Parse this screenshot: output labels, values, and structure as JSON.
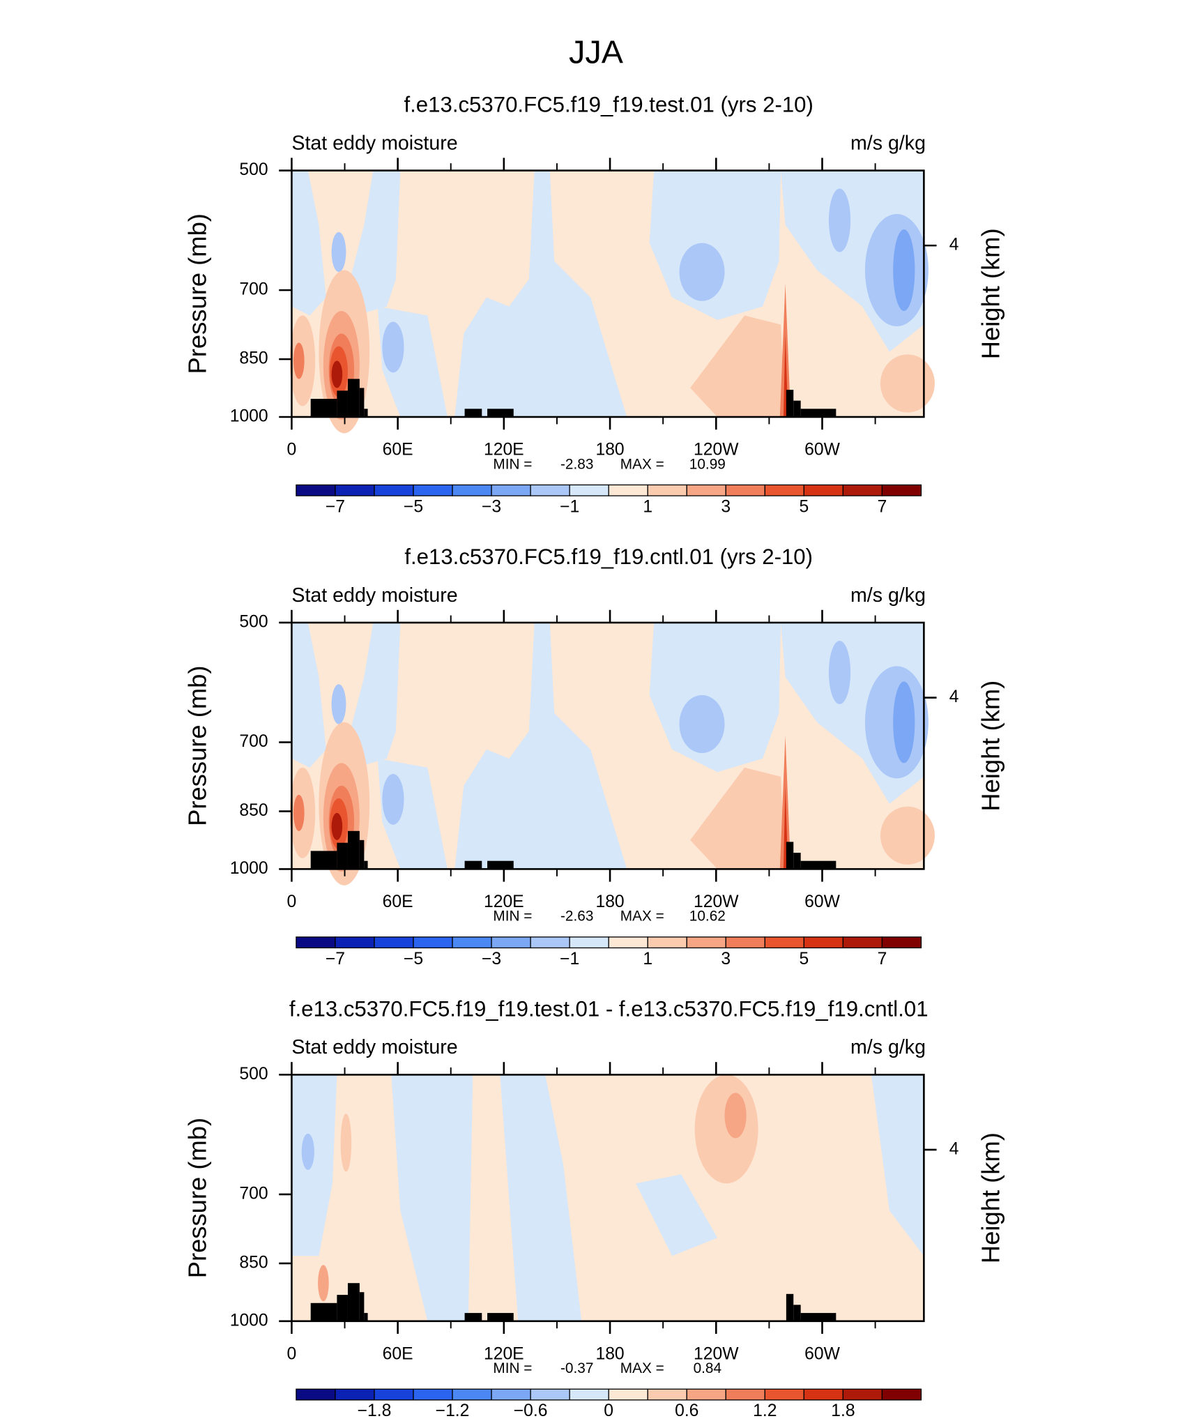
{
  "title": "JJA",
  "chart_data": [
    {
      "type": "contour",
      "title": "f.e13.c5370.FC5.f19_f19.test.01 (yrs 2-10)",
      "left_label": "Stat eddy moisture",
      "right_label": "m/s g/kg",
      "xlim": [
        0,
        357.5
      ],
      "xticks": [
        0,
        {
          "value": 60,
          "label": "60E"
        },
        {
          "value": 120,
          "label": "120E"
        },
        180,
        {
          "value": 240,
          "label": "120W"
        },
        {
          "value": 300,
          "label": "60W"
        }
      ],
      "xminorticks": [
        30,
        90,
        150,
        210,
        270,
        330
      ],
      "ylim": [
        1000,
        500
      ],
      "log_y": true,
      "yticks": [
        500,
        700,
        850,
        1000
      ],
      "y_label": "Pressure (mb)",
      "y2lim": [
        0,
        5.75
      ],
      "y2ticks": [
        4
      ],
      "y2_label": "Height (km)",
      "min_label": "MIN =",
      "min": -2.83,
      "max_label": "MAX =",
      "max": 10.99,
      "colorbar": {
        "levels": [
          -7,
          -6,
          -5,
          -4,
          -3,
          -2,
          -1,
          0,
          1,
          2,
          3,
          4,
          5,
          6,
          7
        ],
        "colors": [
          "#0a0a85",
          "#0b22b5",
          "#1843db",
          "#2a64ef",
          "#4c88f4",
          "#7ca7f5",
          "#abc7f7",
          "#d5e7f9",
          "#fde7d5",
          "#fbcbb0",
          "#f6a585",
          "#f07e5a",
          "#e9552f",
          "#d63315",
          "#ad1a0a",
          "#800000"
        ],
        "ticks": [
          {
            "value": -7,
            "label": "−7"
          },
          {
            "value": -5,
            "label": "−5"
          },
          {
            "value": -3,
            "label": "−3"
          },
          {
            "value": -1,
            "label": "−1"
          },
          1,
          3,
          5,
          7
        ]
      }
    },
    {
      "type": "contour",
      "title": "f.e13.c5370.FC5.f19_f19.cntl.01 (yrs 2-10)",
      "left_label": "Stat eddy moisture",
      "right_label": "m/s g/kg",
      "xlim": [
        0,
        357.5
      ],
      "xticks": [
        0,
        {
          "value": 60,
          "label": "60E"
        },
        {
          "value": 120,
          "label": "120E"
        },
        180,
        {
          "value": 240,
          "label": "120W"
        },
        {
          "value": 300,
          "label": "60W"
        }
      ],
      "xminorticks": [
        30,
        90,
        150,
        210,
        270,
        330
      ],
      "ylim": [
        1000,
        500
      ],
      "log_y": true,
      "yticks": [
        500,
        700,
        850,
        1000
      ],
      "y_label": "Pressure (mb)",
      "y2lim": [
        0,
        5.75
      ],
      "y2ticks": [
        4
      ],
      "y2_label": "Height (km)",
      "min_label": "MIN =",
      "min": -2.63,
      "max_label": "MAX =",
      "max": 10.62,
      "colorbar": {
        "levels": [
          -7,
          -6,
          -5,
          -4,
          -3,
          -2,
          -1,
          0,
          1,
          2,
          3,
          4,
          5,
          6,
          7
        ],
        "colors": [
          "#0a0a85",
          "#0b22b5",
          "#1843db",
          "#2a64ef",
          "#4c88f4",
          "#7ca7f5",
          "#abc7f7",
          "#d5e7f9",
          "#fde7d5",
          "#fbcbb0",
          "#f6a585",
          "#f07e5a",
          "#e9552f",
          "#d63315",
          "#ad1a0a",
          "#800000"
        ],
        "ticks": [
          {
            "value": -7,
            "label": "−7"
          },
          {
            "value": -5,
            "label": "−5"
          },
          {
            "value": -3,
            "label": "−3"
          },
          {
            "value": -1,
            "label": "−1"
          },
          1,
          3,
          5,
          7
        ]
      }
    },
    {
      "type": "contour",
      "title": "f.e13.c5370.FC5.f19_f19.test.01 - f.e13.c5370.FC5.f19_f19.cntl.01",
      "left_label": "Stat eddy moisture",
      "right_label": "m/s g/kg",
      "xlim": [
        0,
        357.5
      ],
      "xticks": [
        0,
        {
          "value": 60,
          "label": "60E"
        },
        {
          "value": 120,
          "label": "120E"
        },
        180,
        {
          "value": 240,
          "label": "120W"
        },
        {
          "value": 300,
          "label": "60W"
        }
      ],
      "xminorticks": [
        30,
        90,
        150,
        210,
        270,
        330
      ],
      "ylim": [
        1000,
        500
      ],
      "log_y": true,
      "yticks": [
        500,
        700,
        850,
        1000
      ],
      "y_label": "Pressure (mb)",
      "y2lim": [
        0,
        5.75
      ],
      "y2ticks": [
        4
      ],
      "y2_label": "Height (km)",
      "min_label": "MIN =",
      "min": -0.37,
      "max_label": "MAX =",
      "max": 0.84,
      "colorbar": {
        "levels": [
          -2.1,
          -1.8,
          -1.5,
          -1.2,
          -0.9,
          -0.6,
          -0.3,
          0,
          0.3,
          0.6,
          0.9,
          1.2,
          1.5,
          1.8,
          2.1
        ],
        "colors": [
          "#0a0a85",
          "#0b22b5",
          "#1843db",
          "#2a64ef",
          "#4c88f4",
          "#7ca7f5",
          "#abc7f7",
          "#d5e7f9",
          "#fde7d5",
          "#fbcbb0",
          "#f6a585",
          "#f07e5a",
          "#e9552f",
          "#d63315",
          "#ad1a0a",
          "#800000"
        ],
        "ticks": [
          {
            "value": -1.8,
            "label": "−1.8"
          },
          {
            "value": -1.2,
            "label": "−1.2"
          },
          {
            "value": -0.6,
            "label": "−0.6"
          },
          0,
          0.6,
          1.2,
          1.8
        ]
      }
    }
  ]
}
